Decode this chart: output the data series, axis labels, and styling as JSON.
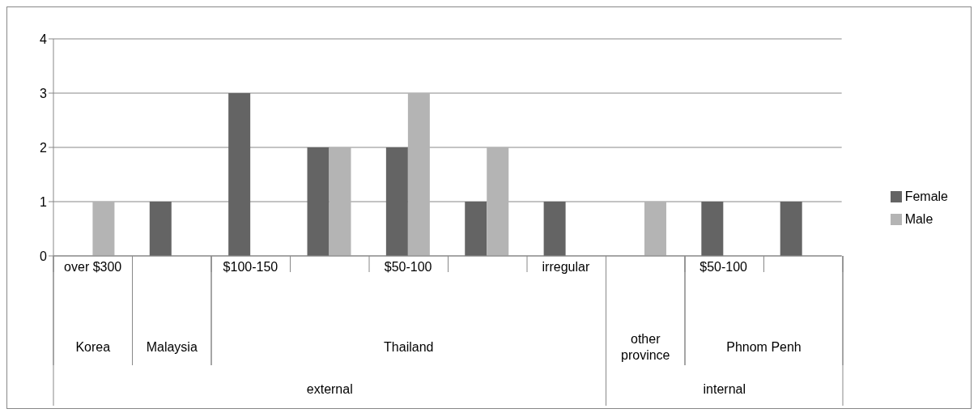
{
  "chart_data": {
    "type": "bar",
    "categories": [
      "over $300",
      null,
      "$100-150",
      null,
      "$50-100",
      null,
      "irregular",
      null,
      "$50-100",
      null
    ],
    "series": [
      {
        "name": "Female",
        "color": "#646464",
        "values": [
          null,
          1,
          3,
          2,
          2,
          1,
          1,
          null,
          1,
          1
        ]
      },
      {
        "name": "Male",
        "color": "#b4b4b4",
        "values": [
          1,
          null,
          null,
          2,
          3,
          2,
          null,
          1,
          null,
          null
        ]
      }
    ],
    "ylim": [
      0,
      4
    ],
    "yticks": [
      0,
      1,
      2,
      3,
      4
    ],
    "grid": "y",
    "legend": "right",
    "annotations": [
      "Korea",
      "Malaysia",
      "Thailand",
      "other province",
      "Phnom Penh",
      "external",
      "internal"
    ]
  }
}
